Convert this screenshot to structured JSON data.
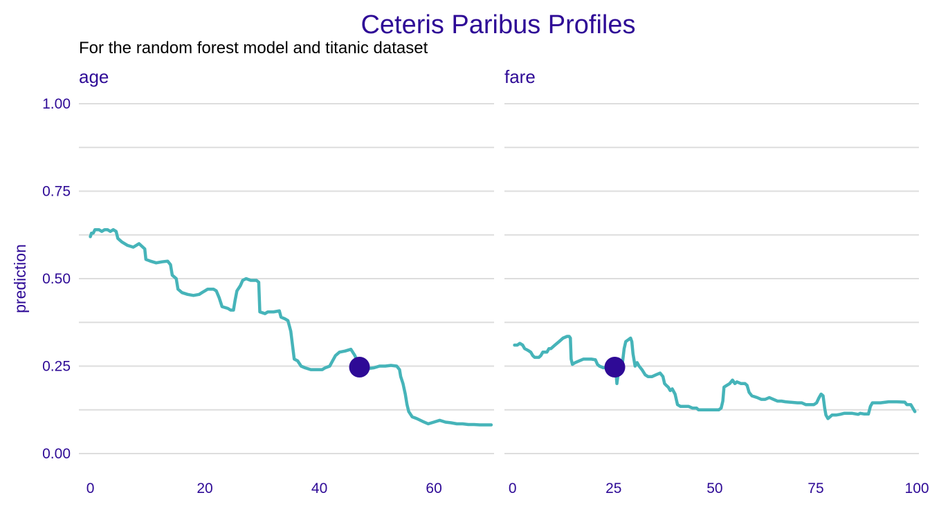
{
  "chart_data": {
    "type": "line",
    "title": "Ceteris Paribus Profiles",
    "subtitle": "For the random forest model and titanic dataset",
    "ylabel": "prediction",
    "ylim": [
      0,
      1
    ],
    "y_ticks": [
      0,
      0.25,
      0.5,
      0.75,
      1
    ],
    "y_tick_labels": [
      "0.00",
      "0.25",
      "0.50",
      "0.75",
      "1.00"
    ],
    "grid": true,
    "colors": {
      "title": "#2e0a96",
      "line": "#46b4b9",
      "point": "#2e0a96",
      "grid": "#dddddd",
      "text": "#000000"
    },
    "panels": [
      {
        "name": "age",
        "xlim": [
          -2,
          70.5
        ],
        "x_ticks": [
          0,
          20,
          40,
          60
        ],
        "x_tick_labels": [
          "0",
          "20",
          "40",
          "60"
        ],
        "observation": {
          "x": 47,
          "y": 0.247
        },
        "points": [
          [
            0,
            0.62
          ],
          [
            0.2,
            0.63
          ],
          [
            0.5,
            0.63
          ],
          [
            0.8,
            0.64
          ],
          [
            1.5,
            0.64
          ],
          [
            2,
            0.635
          ],
          [
            2.5,
            0.64
          ],
          [
            3,
            0.64
          ],
          [
            3.5,
            0.635
          ],
          [
            4,
            0.64
          ],
          [
            4.5,
            0.635
          ],
          [
            4.8,
            0.615
          ],
          [
            5.5,
            0.605
          ],
          [
            6.5,
            0.595
          ],
          [
            7.5,
            0.59
          ],
          [
            8.5,
            0.6
          ],
          [
            9.5,
            0.585
          ],
          [
            9.7,
            0.555
          ],
          [
            10.5,
            0.55
          ],
          [
            11.5,
            0.545
          ],
          [
            12.5,
            0.548
          ],
          [
            13.5,
            0.55
          ],
          [
            14,
            0.54
          ],
          [
            14.3,
            0.51
          ],
          [
            15,
            0.5
          ],
          [
            15.3,
            0.47
          ],
          [
            16,
            0.46
          ],
          [
            17,
            0.455
          ],
          [
            18,
            0.452
          ],
          [
            19,
            0.455
          ],
          [
            19.5,
            0.46
          ],
          [
            20,
            0.465
          ],
          [
            20.5,
            0.47
          ],
          [
            21,
            0.47
          ],
          [
            21.5,
            0.47
          ],
          [
            22,
            0.465
          ],
          [
            22.5,
            0.445
          ],
          [
            23,
            0.42
          ],
          [
            24,
            0.415
          ],
          [
            24.5,
            0.41
          ],
          [
            25,
            0.41
          ],
          [
            25.3,
            0.44
          ],
          [
            25.6,
            0.465
          ],
          [
            26.2,
            0.48
          ],
          [
            26.6,
            0.495
          ],
          [
            27.2,
            0.5
          ],
          [
            28,
            0.495
          ],
          [
            28.5,
            0.495
          ],
          [
            29,
            0.495
          ],
          [
            29.4,
            0.49
          ],
          [
            29.6,
            0.405
          ],
          [
            30.5,
            0.4
          ],
          [
            31,
            0.405
          ],
          [
            32,
            0.405
          ],
          [
            33,
            0.408
          ],
          [
            33.3,
            0.39
          ],
          [
            34,
            0.385
          ],
          [
            34.5,
            0.38
          ],
          [
            35,
            0.35
          ],
          [
            35.3,
            0.31
          ],
          [
            35.6,
            0.27
          ],
          [
            36.2,
            0.265
          ],
          [
            36.8,
            0.25
          ],
          [
            37.5,
            0.245
          ],
          [
            38.5,
            0.24
          ],
          [
            39.5,
            0.24
          ],
          [
            40.5,
            0.24
          ],
          [
            41,
            0.245
          ],
          [
            41.8,
            0.25
          ],
          [
            42.3,
            0.265
          ],
          [
            42.8,
            0.28
          ],
          [
            43.5,
            0.29
          ],
          [
            44.5,
            0.293
          ],
          [
            45.5,
            0.298
          ],
          [
            46.2,
            0.28
          ],
          [
            47,
            0.247
          ],
          [
            48,
            0.245
          ],
          [
            48.5,
            0.243
          ],
          [
            49.5,
            0.245
          ],
          [
            50.5,
            0.25
          ],
          [
            51.5,
            0.25
          ],
          [
            52.5,
            0.252
          ],
          [
            53.5,
            0.25
          ],
          [
            54,
            0.24
          ],
          [
            54.2,
            0.22
          ],
          [
            54.6,
            0.2
          ],
          [
            55,
            0.17
          ],
          [
            55.3,
            0.14
          ],
          [
            55.6,
            0.12
          ],
          [
            56.2,
            0.105
          ],
          [
            57,
            0.1
          ],
          [
            58,
            0.092
          ],
          [
            59,
            0.085
          ],
          [
            60,
            0.09
          ],
          [
            61,
            0.095
          ],
          [
            62,
            0.09
          ],
          [
            63,
            0.088
          ],
          [
            64,
            0.085
          ],
          [
            65,
            0.085
          ],
          [
            66,
            0.083
          ],
          [
            67,
            0.083
          ],
          [
            68,
            0.082
          ],
          [
            69,
            0.082
          ],
          [
            70,
            0.082
          ]
        ]
      },
      {
        "name": "fare",
        "xlim": [
          -2,
          100.5
        ],
        "x_ticks": [
          0,
          25,
          50,
          75,
          100
        ],
        "x_tick_labels": [
          "0",
          "25",
          "50",
          "75",
          "100"
        ],
        "observation": {
          "x": 25.3,
          "y": 0.247
        },
        "points": [
          [
            0.5,
            0.31
          ],
          [
            1.2,
            0.31
          ],
          [
            1.8,
            0.315
          ],
          [
            2.5,
            0.31
          ],
          [
            3,
            0.3
          ],
          [
            3.8,
            0.295
          ],
          [
            4.5,
            0.29
          ],
          [
            5,
            0.28
          ],
          [
            5.5,
            0.275
          ],
          [
            6.5,
            0.275
          ],
          [
            7,
            0.28
          ],
          [
            7.5,
            0.29
          ],
          [
            8.5,
            0.29
          ],
          [
            9,
            0.3
          ],
          [
            9.5,
            0.3
          ],
          [
            10.5,
            0.31
          ],
          [
            11.5,
            0.32
          ],
          [
            12.5,
            0.33
          ],
          [
            13.5,
            0.335
          ],
          [
            14,
            0.335
          ],
          [
            14.3,
            0.33
          ],
          [
            14.5,
            0.27
          ],
          [
            14.8,
            0.255
          ],
          [
            15.5,
            0.26
          ],
          [
            16.5,
            0.265
          ],
          [
            17.5,
            0.27
          ],
          [
            18.5,
            0.27
          ],
          [
            19.5,
            0.27
          ],
          [
            20.5,
            0.268
          ],
          [
            21,
            0.255
          ],
          [
            21.5,
            0.25
          ],
          [
            22.5,
            0.245
          ],
          [
            23.5,
            0.248
          ],
          [
            24.5,
            0.247
          ],
          [
            25.5,
            0.245
          ],
          [
            25.8,
            0.2
          ],
          [
            26.2,
            0.235
          ],
          [
            26.6,
            0.25
          ],
          [
            27.2,
            0.26
          ],
          [
            27.6,
            0.3
          ],
          [
            28,
            0.32
          ],
          [
            28.6,
            0.325
          ],
          [
            29.2,
            0.33
          ],
          [
            29.5,
            0.32
          ],
          [
            29.8,
            0.285
          ],
          [
            30.3,
            0.25
          ],
          [
            30.8,
            0.26
          ],
          [
            31.3,
            0.25
          ],
          [
            32,
            0.24
          ],
          [
            32.8,
            0.225
          ],
          [
            33.5,
            0.22
          ],
          [
            34.5,
            0.22
          ],
          [
            35.5,
            0.225
          ],
          [
            36.5,
            0.23
          ],
          [
            37.2,
            0.22
          ],
          [
            37.6,
            0.2
          ],
          [
            38,
            0.195
          ],
          [
            38.5,
            0.19
          ],
          [
            39,
            0.18
          ],
          [
            39.5,
            0.185
          ],
          [
            40.2,
            0.17
          ],
          [
            40.8,
            0.14
          ],
          [
            41.5,
            0.135
          ],
          [
            42.5,
            0.135
          ],
          [
            43.5,
            0.135
          ],
          [
            44.5,
            0.13
          ],
          [
            45.5,
            0.13
          ],
          [
            46,
            0.125
          ],
          [
            47,
            0.125
          ],
          [
            48,
            0.125
          ],
          [
            50,
            0.125
          ],
          [
            51,
            0.125
          ],
          [
            51.6,
            0.13
          ],
          [
            52,
            0.15
          ],
          [
            52.3,
            0.19
          ],
          [
            53,
            0.195
          ],
          [
            53.7,
            0.2
          ],
          [
            54.4,
            0.21
          ],
          [
            55,
            0.2
          ],
          [
            55.5,
            0.205
          ],
          [
            56.5,
            0.2
          ],
          [
            57.5,
            0.2
          ],
          [
            58,
            0.195
          ],
          [
            58.5,
            0.175
          ],
          [
            59.2,
            0.165
          ],
          [
            60.5,
            0.16
          ],
          [
            61.5,
            0.155
          ],
          [
            62.5,
            0.155
          ],
          [
            63.5,
            0.16
          ],
          [
            64.5,
            0.155
          ],
          [
            65.5,
            0.15
          ],
          [
            66.5,
            0.15
          ],
          [
            67.5,
            0.148
          ],
          [
            68.5,
            0.147
          ],
          [
            69.5,
            0.146
          ],
          [
            70.5,
            0.145
          ],
          [
            71.5,
            0.145
          ],
          [
            72.5,
            0.14
          ],
          [
            73.5,
            0.14
          ],
          [
            74.5,
            0.14
          ],
          [
            75.2,
            0.145
          ],
          [
            75.8,
            0.16
          ],
          [
            76.3,
            0.17
          ],
          [
            76.8,
            0.165
          ],
          [
            77.2,
            0.13
          ],
          [
            77.5,
            0.11
          ],
          [
            78,
            0.1
          ],
          [
            78.5,
            0.105
          ],
          [
            79,
            0.11
          ],
          [
            80,
            0.11
          ],
          [
            81,
            0.112
          ],
          [
            82,
            0.115
          ],
          [
            84,
            0.115
          ],
          [
            85.5,
            0.112
          ],
          [
            86,
            0.115
          ],
          [
            87,
            0.113
          ],
          [
            88,
            0.113
          ],
          [
            88.5,
            0.135
          ],
          [
            89,
            0.145
          ],
          [
            91,
            0.145
          ],
          [
            93,
            0.148
          ],
          [
            95,
            0.148
          ],
          [
            97,
            0.147
          ],
          [
            97.5,
            0.14
          ],
          [
            98.5,
            0.14
          ],
          [
            99,
            0.13
          ],
          [
            99.5,
            0.12
          ]
        ]
      }
    ]
  }
}
